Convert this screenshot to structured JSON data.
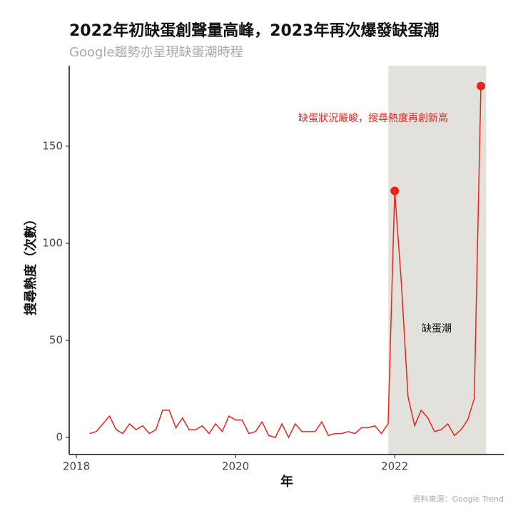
{
  "chart_data": {
    "type": "line",
    "title": "2022年初缺蛋創聲量高峰，2023年再次爆發缺蛋潮",
    "subtitle": "Google趨勢亦呈現缺蛋潮時程",
    "x_label": "年",
    "y_label": "搜尋熱度（次數）",
    "source": "資料來源：Google Trend",
    "annotations": [
      "缺蛋狀況嚴峻，搜尋熱度再創新高",
      "缺蛋潮"
    ],
    "highlight_range": [
      2021.92,
      2023.15
    ],
    "highlight_color": "#e3e1dc",
    "highlight_points": [
      46,
      59
    ],
    "x": [
      2018.167,
      2018.25,
      2018.333,
      2018.417,
      2018.5,
      2018.583,
      2018.667,
      2018.75,
      2018.833,
      2018.917,
      2019.0,
      2019.083,
      2019.167,
      2019.25,
      2019.333,
      2019.417,
      2019.5,
      2019.583,
      2019.667,
      2019.75,
      2019.833,
      2019.917,
      2020.0,
      2020.083,
      2020.167,
      2020.25,
      2020.333,
      2020.417,
      2020.5,
      2020.583,
      2020.667,
      2020.75,
      2020.833,
      2020.917,
      2021.0,
      2021.083,
      2021.167,
      2021.25,
      2021.333,
      2021.417,
      2021.5,
      2021.583,
      2021.667,
      2021.75,
      2021.833,
      2021.917,
      2022.0,
      2022.083,
      2022.167,
      2022.25,
      2022.333,
      2022.417,
      2022.5,
      2022.583,
      2022.667,
      2022.75,
      2022.833,
      2022.917,
      2023.0,
      2023.083
    ],
    "series": [
      {
        "name": "搜尋熱度",
        "color": "#e8251a",
        "values": [
          2,
          3,
          7,
          11,
          4,
          2,
          7,
          4,
          6,
          2,
          4,
          14,
          14,
          5,
          10,
          4,
          4,
          6,
          2,
          7,
          3,
          11,
          9,
          9,
          2,
          3,
          8,
          1,
          0,
          7,
          0,
          7,
          3,
          3,
          3,
          8,
          1,
          2,
          2,
          3,
          2,
          5,
          5,
          6,
          2,
          7,
          127,
          80,
          21,
          6,
          14,
          10,
          3,
          4,
          7,
          1,
          4,
          9,
          20,
          181
        ]
      }
    ],
    "xlim": [
      2017.91,
      2023.37
    ],
    "xticks": [
      2018,
      2020,
      2022
    ],
    "ylim": [
      -8.8,
      191.5
    ],
    "yticks": [
      0,
      50,
      100,
      150
    ]
  }
}
